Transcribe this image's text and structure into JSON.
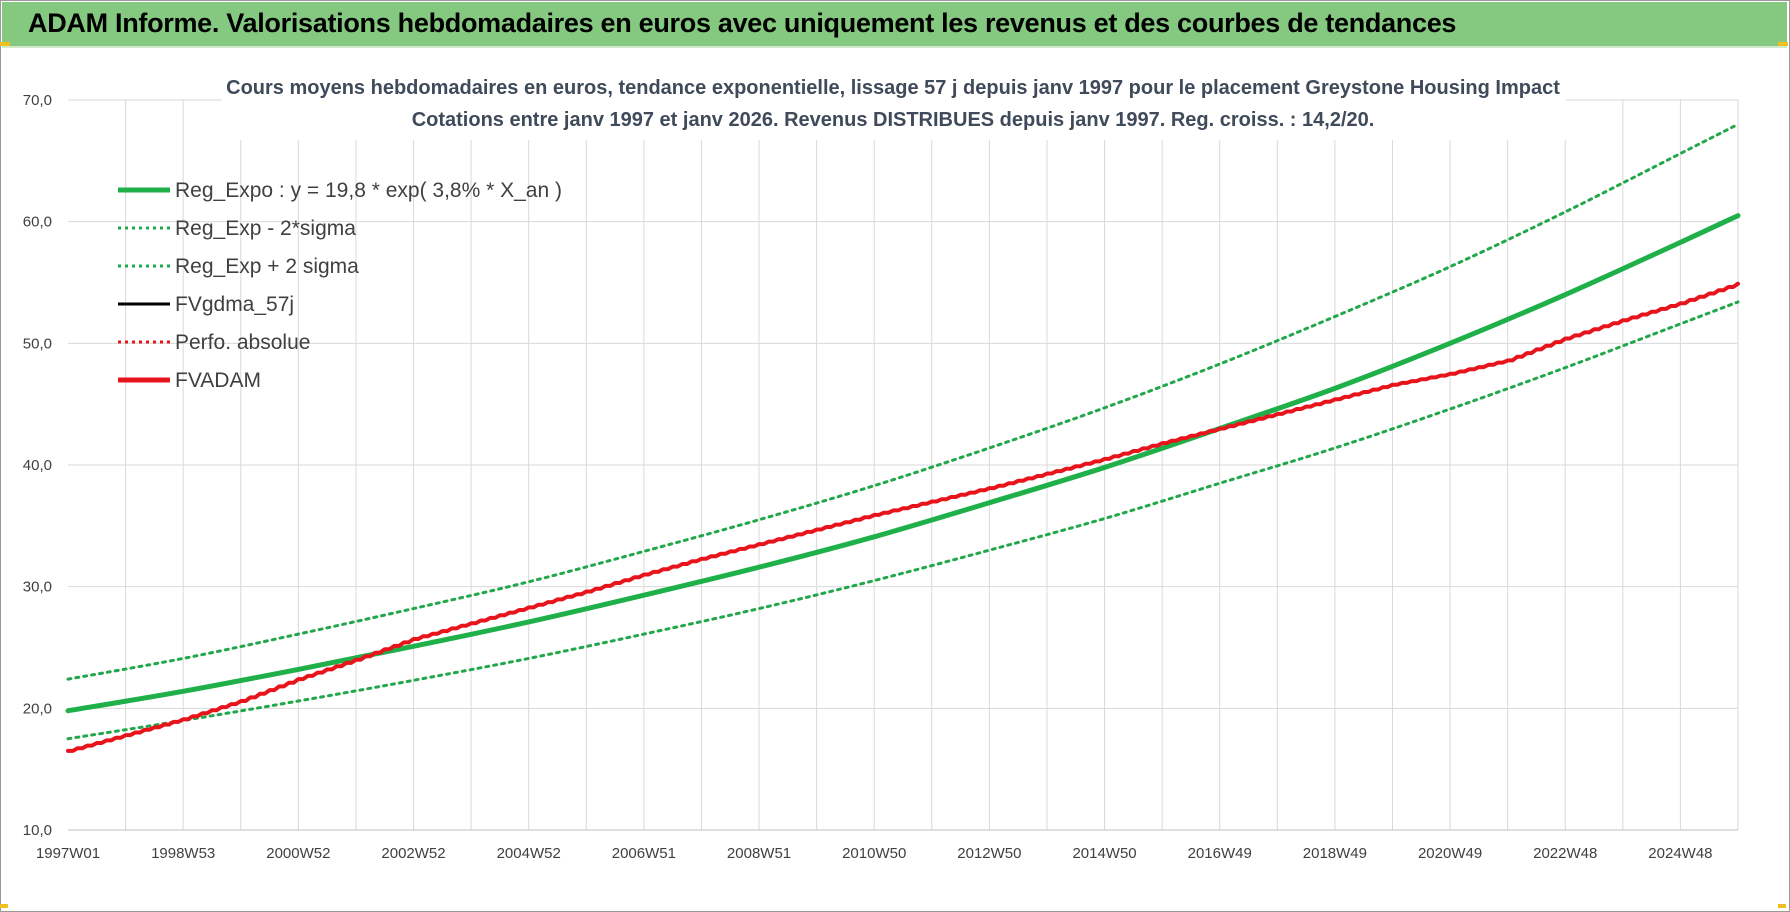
{
  "banner": {
    "title": "ADAM Informe. Valorisations hebdomadaires en euros avec uniquement les revenus et des courbes de tendances"
  },
  "colors": {
    "banner_bg": "#84c97f",
    "trend_green": "#1fb04a",
    "band_green": "#22a84a",
    "fvadam_red": "#e8141c",
    "grid": "#d9d9d9"
  },
  "chart_data": {
    "type": "line",
    "title_line1": "Cours moyens hebdomadaires en euros, tendance exponentielle, lissage 57 j depuis janv 1997  pour le  placement Greystone Housing Impact",
    "title_line2": "Cotations entre janv 1997 et janv 2026. Revenus DISTRIBUES depuis janv 1997. Reg. croiss. : 14,2/20.",
    "xlabel": "",
    "ylabel": "",
    "ylim": [
      10,
      70
    ],
    "yticks": [
      "10,0",
      "20,0",
      "30,0",
      "40,0",
      "50,0",
      "60,0",
      "70,0"
    ],
    "xtick_labels": [
      "1997W01",
      "1998W53",
      "2000W52",
      "2002W52",
      "2004W52",
      "2006W51",
      "2008W51",
      "2010W50",
      "2012W50",
      "2014W50",
      "2016W49",
      "2018W49",
      "2020W49",
      "2022W48",
      "2024W48"
    ],
    "xlim_years": [
      1997.0,
      2026.0
    ],
    "grid": true,
    "legend_position": "top-left",
    "legend": [
      {
        "label": "Reg_Expo : y = 19,8 * exp( 3,8% *  X_an )",
        "color": "#1fb04a",
        "style": "solid-thick"
      },
      {
        "label": "Reg_Exp - 2*sigma",
        "color": "#22a84a",
        "style": "dotted"
      },
      {
        "label": "Reg_Exp + 2 sigma",
        "color": "#22a84a",
        "style": "dotted"
      },
      {
        "label": "FVgdma_57j",
        "color": "#000000",
        "style": "solid"
      },
      {
        "label": "Perfo. absolue",
        "color": "#e8141c",
        "style": "dotted"
      },
      {
        "label": "FVADAM",
        "color": "#e8141c",
        "style": "solid-thick"
      }
    ],
    "series": [
      {
        "name": "Reg_Expo : y = 19,8 * exp( 3,8% *  X_an )",
        "x": [
          1997.0,
          1999.0,
          2001.0,
          2003.0,
          2005.0,
          2007.0,
          2009.0,
          2011.0,
          2013.0,
          2015.0,
          2017.0,
          2019.0,
          2021.0,
          2023.0,
          2025.0,
          2026.0
        ],
        "values": [
          19.8,
          21.4,
          23.2,
          25.1,
          27.1,
          29.3,
          31.6,
          34.1,
          36.9,
          39.8,
          43.0,
          46.3,
          50.0,
          54.0,
          58.3,
          60.5
        ]
      },
      {
        "name": "Reg_Exp - 2*sigma",
        "x": [
          1997.0,
          1999.0,
          2001.0,
          2003.0,
          2005.0,
          2007.0,
          2009.0,
          2011.0,
          2013.0,
          2015.0,
          2017.0,
          2019.0,
          2021.0,
          2023.0,
          2025.0,
          2026.0
        ],
        "values": [
          17.5,
          19.0,
          20.6,
          22.3,
          24.1,
          26.1,
          28.2,
          30.5,
          33.0,
          35.6,
          38.5,
          41.4,
          44.6,
          48.0,
          51.6,
          53.4
        ]
      },
      {
        "name": "Reg_Exp + 2 sigma",
        "x": [
          1997.0,
          1999.0,
          2001.0,
          2003.0,
          2005.0,
          2007.0,
          2009.0,
          2011.0,
          2013.0,
          2015.0,
          2017.0,
          2019.0,
          2021.0,
          2023.0,
          2025.0,
          2026.0
        ],
        "values": [
          22.4,
          24.1,
          26.1,
          28.2,
          30.4,
          32.9,
          35.5,
          38.3,
          41.4,
          44.7,
          48.3,
          52.2,
          56.3,
          60.8,
          65.6,
          68.0
        ]
      },
      {
        "name": "FVADAM",
        "x": [
          1997.0,
          1998.0,
          1999.0,
          2000.0,
          2001.0,
          2002.0,
          2003.0,
          2004.0,
          2005.0,
          2006.0,
          2007.0,
          2008.0,
          2009.0,
          2010.0,
          2011.0,
          2012.0,
          2013.0,
          2014.0,
          2015.0,
          2016.0,
          2017.0,
          2018.0,
          2019.0,
          2020.0,
          2021.0,
          2022.0,
          2023.0,
          2024.0,
          2025.0,
          2026.0
        ],
        "values": [
          16.5,
          17.8,
          19.1,
          20.6,
          22.4,
          24.0,
          25.7,
          27.0,
          28.3,
          29.6,
          31.0,
          32.3,
          33.5,
          34.7,
          35.9,
          37.0,
          38.1,
          39.3,
          40.5,
          41.8,
          43.0,
          44.2,
          45.4,
          46.6,
          47.5,
          48.6,
          50.4,
          51.9,
          53.3,
          54.9
        ]
      }
    ]
  }
}
